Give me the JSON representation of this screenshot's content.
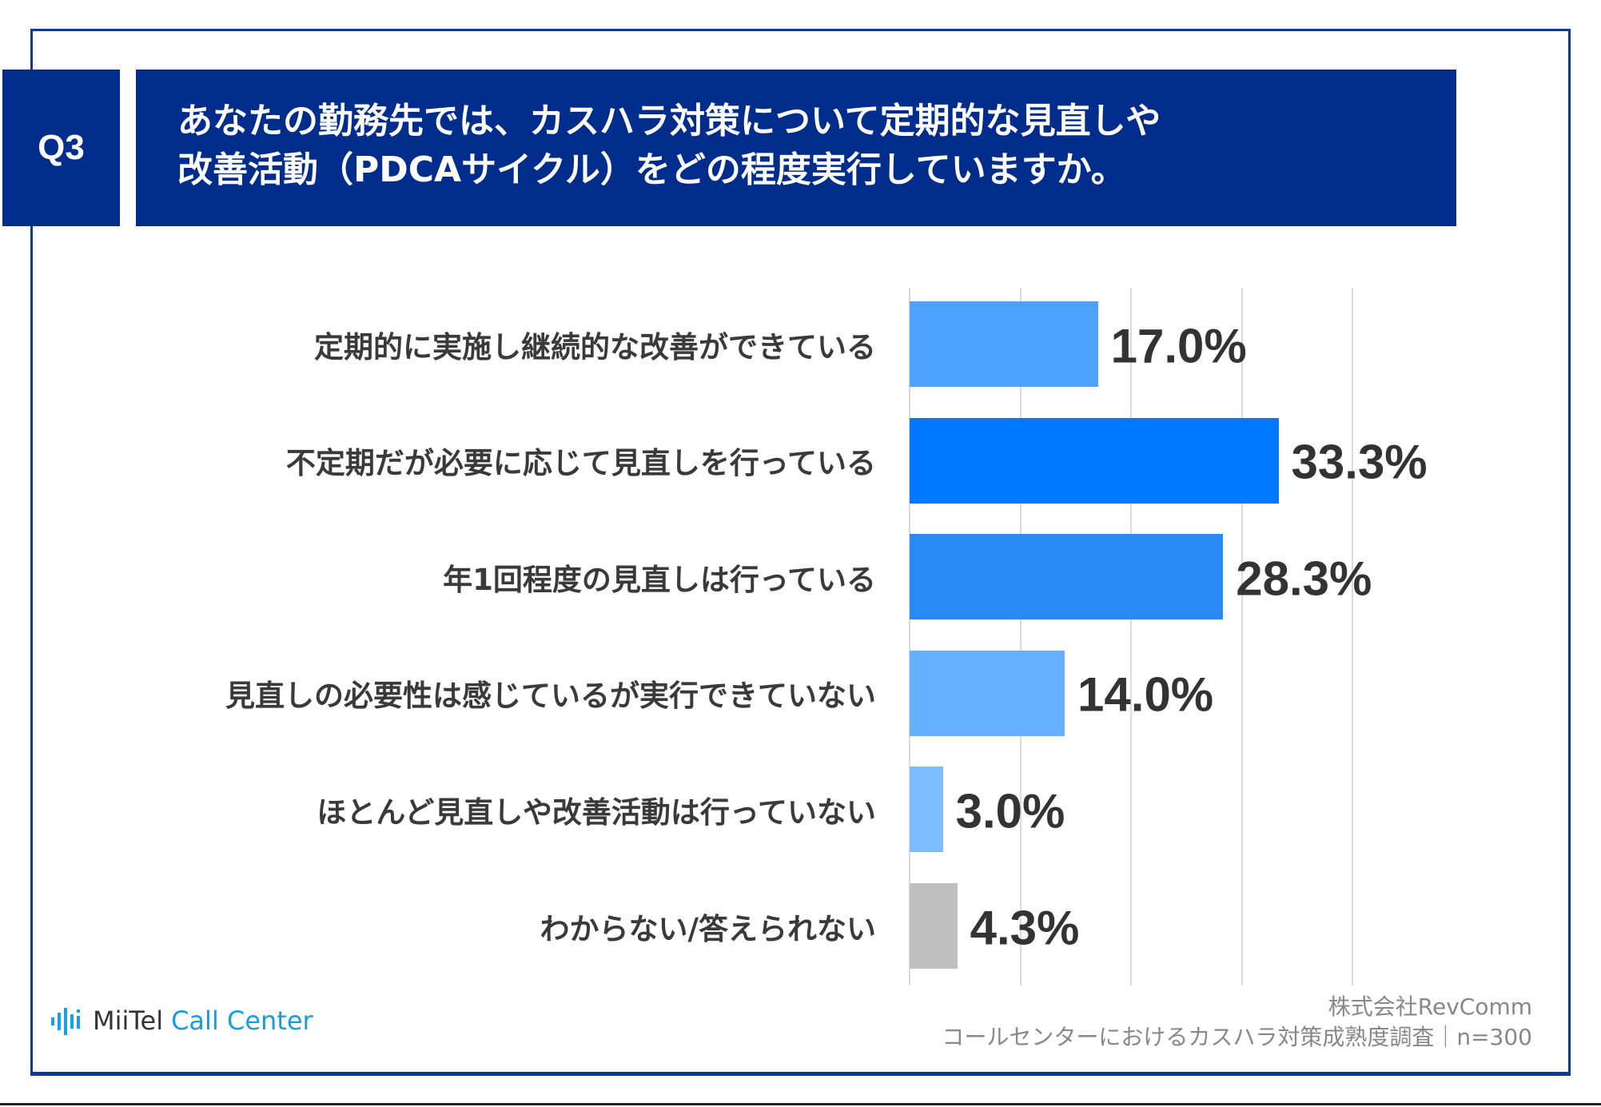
{
  "question_number": "Q3",
  "title_lines": [
    "あなたの勤務先では、カスハラ対策について定期的な見直しや",
    "改善活動（PDCAサイクル）をどの程度実行していますか。"
  ],
  "chart_data": {
    "type": "bar",
    "orientation": "horizontal",
    "title": "あなたの勤務先では、カスハラ対策について定期的な見直しや改善活動（PDCAサイクル）をどの程度実行していますか。",
    "categories": [
      "定期的に実施し継続的な改善ができている",
      "不定期だが必要に応じて見直しを行っている",
      "年1回程度の見直しは行っている",
      "見直しの必要性は感じているが実行できていない",
      "ほとんど見直しや改善活動は行っていない",
      "わからない/答えられない"
    ],
    "values": [
      17.0,
      33.3,
      28.3,
      14.0,
      3.0,
      4.3
    ],
    "value_labels": [
      "17.0%",
      "33.3%",
      "28.3%",
      "14.0%",
      "3.0%",
      "4.3%"
    ],
    "colors": [
      "#4ea2ff",
      "#0077ff",
      "#2a8af5",
      "#66b0ff",
      "#7dbcff",
      "#c0c0c0"
    ],
    "xlim": [
      0,
      40
    ],
    "grid": true,
    "unit": "%"
  },
  "footer": {
    "logo_text_1": "MiiTel",
    "logo_text_2": "Call Center",
    "company": "株式会社RevComm",
    "survey": "コールセンターにおけるカスハラ対策成熟度調査｜n=300"
  }
}
